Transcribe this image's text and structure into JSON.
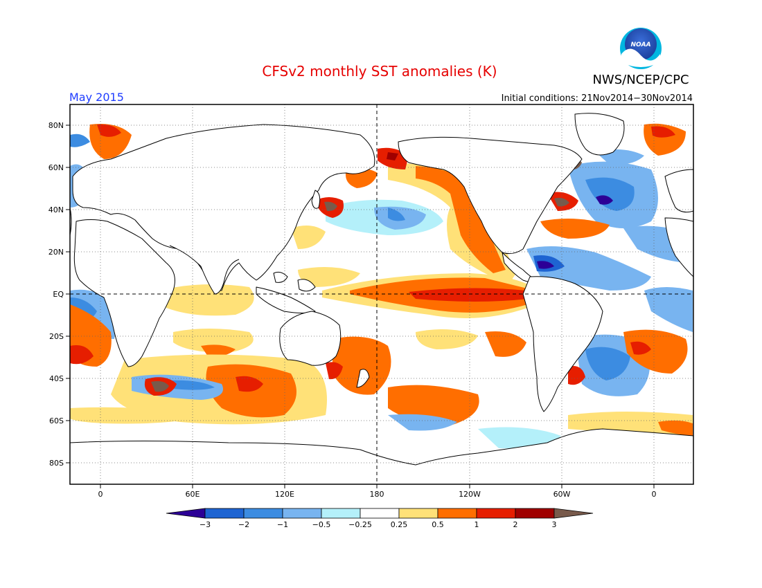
{
  "title": "CFSv2 monthly SST anomalies (K)",
  "org": "NWS/NCEP/CPC",
  "logo_text": "NOAA",
  "valid_month": "May 2015",
  "initial_conditions": "Initial conditions: 21Nov2014−30Nov2014",
  "lat_labels": [
    "80N",
    "60N",
    "40N",
    "20N",
    "EQ",
    "20S",
    "40S",
    "60S",
    "80S"
  ],
  "lon_labels": [
    "0",
    "60E",
    "120E",
    "180",
    "120W",
    "60W",
    "0"
  ],
  "colorbar": {
    "labels": [
      "−3",
      "−2",
      "−1",
      "−0.5",
      "−0.25",
      "0.25",
      "0.5",
      "1",
      "2",
      "3"
    ],
    "low_color": "#2c0096",
    "high_color": "#785a4b",
    "colors": [
      "#1e64d2",
      "#3c8ce1",
      "#78b4f0",
      "#b4f0fa",
      "#ffffff",
      "#ffe178",
      "#ff6e00",
      "#e61e00",
      "#a00000"
    ]
  },
  "colors": {
    "title": "#e60000",
    "month": "#1e3cff",
    "text": "#000000"
  }
}
